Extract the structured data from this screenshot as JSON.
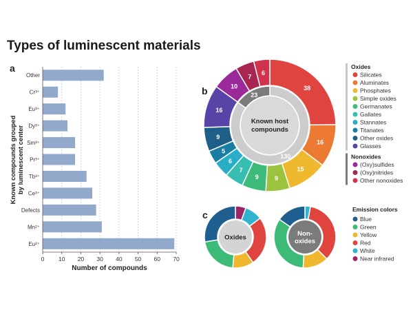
{
  "title": "Types of luminescent materials",
  "panel_labels": {
    "a": "a",
    "b": "b",
    "c": "c"
  },
  "chart_data": [
    {
      "id": "a",
      "type": "bar",
      "orientation": "horizontal",
      "categories": [
        "Other",
        "Cr³⁺",
        "Eu³⁺",
        "Dy³⁺",
        "Sm³⁺",
        "Pr³⁺",
        "Tb³⁺",
        "Ce³⁺",
        "Defects",
        "Mn²⁺",
        "Eu²⁺"
      ],
      "values": [
        32,
        8,
        12,
        13,
        17,
        17,
        23,
        26,
        28,
        31,
        69
      ],
      "xlabel": "Number of compounds",
      "ylabel": "Known compounds grouped by luminescent center",
      "ylabel_lines": [
        "Known compounds grouped",
        "by luminescent center"
      ],
      "xlim": [
        0,
        70
      ],
      "xticks": [
        0,
        10,
        20,
        30,
        40,
        50,
        60,
        70
      ],
      "grid": "x dashed",
      "bar_color": "#93a9cc"
    },
    {
      "id": "b",
      "type": "pie",
      "style": "donut",
      "center_label_lines": [
        "Known host",
        "compounds"
      ],
      "outer_ring": {
        "labels": [
          "Silicates",
          "Aluminates",
          "Phosphates",
          "Simple oxides",
          "Germanates",
          "Gallates",
          "Stannates",
          "Titanates",
          "Other oxides",
          "Glasses",
          "(Oxy)sulfides",
          "(Oxy)nitrides",
          "Other nonoxides"
        ],
        "values": [
          38,
          16,
          15,
          9,
          9,
          7,
          6,
          5,
          9,
          16,
          10,
          7,
          6
        ],
        "colors": [
          "#e0443f",
          "#ec7a33",
          "#f0b82e",
          "#9cc33d",
          "#3ebb7a",
          "#36beb0",
          "#2aaec8",
          "#1a7ea3",
          "#1d5f86",
          "#5a43a6",
          "#9a2a9a",
          "#a8264f",
          "#d2334c"
        ]
      },
      "inner_ring": {
        "labels": [
          "Oxides",
          "Nonoxides"
        ],
        "values": [
          130,
          23
        ],
        "colors": [
          "#cccccc",
          "#7b7b7b"
        ]
      },
      "legend": {
        "groups": [
          {
            "title": "Oxides",
            "items": [
              "Silicates",
              "Aluminates",
              "Phosphates",
              "Simple oxides",
              "Germanates",
              "Gallates",
              "Stannates",
              "Titanates",
              "Other oxides",
              "Glasses"
            ]
          },
          {
            "title": "Nonoxides",
            "items": [
              "(Oxy)sulfides",
              "(Oxy)nitrides",
              "Other nonoxides"
            ]
          }
        ]
      }
    },
    {
      "id": "c",
      "type": "pie",
      "style": "donut",
      "series_colors": {
        "Blue": "#1f5f8f",
        "Green": "#3dba78",
        "Yellow": "#f0b82e",
        "Red": "#e0443f",
        "White": "#2fb3d1",
        "Near infrared": "#9e2565"
      },
      "charts": [
        {
          "center_label_lines": [
            "Oxides"
          ],
          "labels": [
            "Near infrared",
            "White",
            "Red",
            "Yellow",
            "Green",
            "Blue"
          ],
          "values": [
            6,
            10,
            28,
            12,
            23,
            30
          ]
        },
        {
          "center_label_lines": [
            "Non-",
            "oxides"
          ],
          "labels": [
            "White",
            "Red",
            "Yellow",
            "Green",
            "Blue"
          ],
          "values": [
            3,
            36,
            14,
            35,
            16
          ]
        }
      ],
      "legend_title": "Emission colors",
      "legend": [
        "Blue",
        "Green",
        "Yellow",
        "Red",
        "White",
        "Near infrared"
      ]
    }
  ]
}
